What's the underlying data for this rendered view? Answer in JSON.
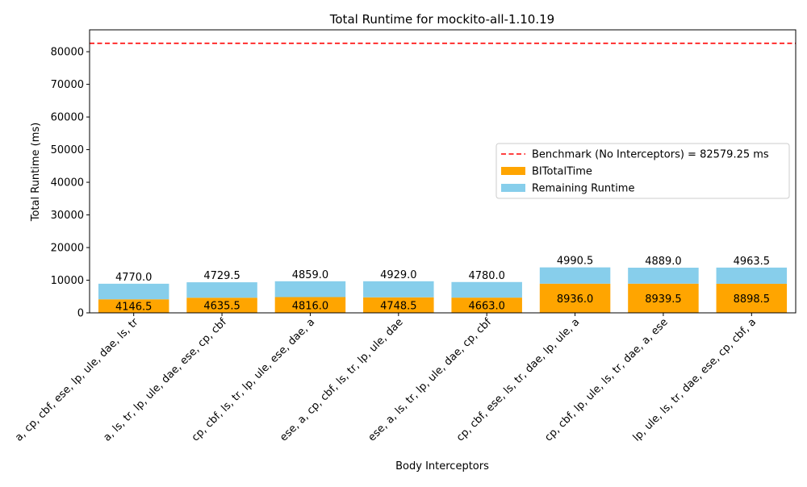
{
  "chart_data": {
    "type": "bar",
    "stacked": true,
    "title": "Total Runtime for mockito-all-1.10.19",
    "xlabel": "Body Interceptors",
    "ylabel": "Total Runtime (ms)",
    "ylim": [
      0,
      86700
    ],
    "yticks": [
      0,
      10000,
      20000,
      30000,
      40000,
      50000,
      60000,
      70000,
      80000
    ],
    "ytick_labels": [
      "0",
      "10000",
      "20000",
      "30000",
      "40000",
      "50000",
      "60000",
      "70000",
      "80000"
    ],
    "categories": [
      "a, cp, cbf, ese, lp, ule, dae, ls, tr",
      "a, ls, tr, lp, ule, dae, ese, cp, cbf",
      "cp, cbf, ls, tr, lp, ule, ese, dae, a",
      "ese, a, cp, cbf, ls, tr, lp, ule, dae",
      "ese, a, ls, tr, lp, ule, dae, cp, cbf",
      "cp, cbf, ese, ls, tr, dae, lp, ule, a",
      "cp, cbf, lp, ule, ls, tr, dae, a, ese",
      "lp, ule, ls, tr, dae, ese, cp, cbf, a"
    ],
    "series": [
      {
        "name": "BITotalTime",
        "color": "#ffa500",
        "values": [
          4146.5,
          4635.5,
          4816.0,
          4748.5,
          4663.0,
          8936.0,
          8939.5,
          8898.5
        ],
        "labels": [
          "4146.5",
          "4635.5",
          "4816.0",
          "4748.5",
          "4663.0",
          "8936.0",
          "8939.5",
          "8898.5"
        ]
      },
      {
        "name": "Remaining Runtime",
        "color": "#87ceeb",
        "values": [
          4770.0,
          4729.5,
          4859.0,
          4929.0,
          4780.0,
          4990.5,
          4889.0,
          4963.5
        ],
        "labels": [
          "4770.0",
          "4729.5",
          "4859.0",
          "4929.0",
          "4780.0",
          "4990.5",
          "4889.0",
          "4963.5"
        ]
      }
    ],
    "benchmark": {
      "value": 82579.25,
      "label": "Benchmark (No Interceptors) = 82579.25 ms",
      "color": "#ff0000",
      "style": "dashed"
    },
    "legend": {
      "placement": "center-right",
      "entries": [
        "Benchmark (No Interceptors) = 82579.25 ms",
        "BITotalTime",
        "Remaining Runtime"
      ]
    },
    "grid": false
  }
}
